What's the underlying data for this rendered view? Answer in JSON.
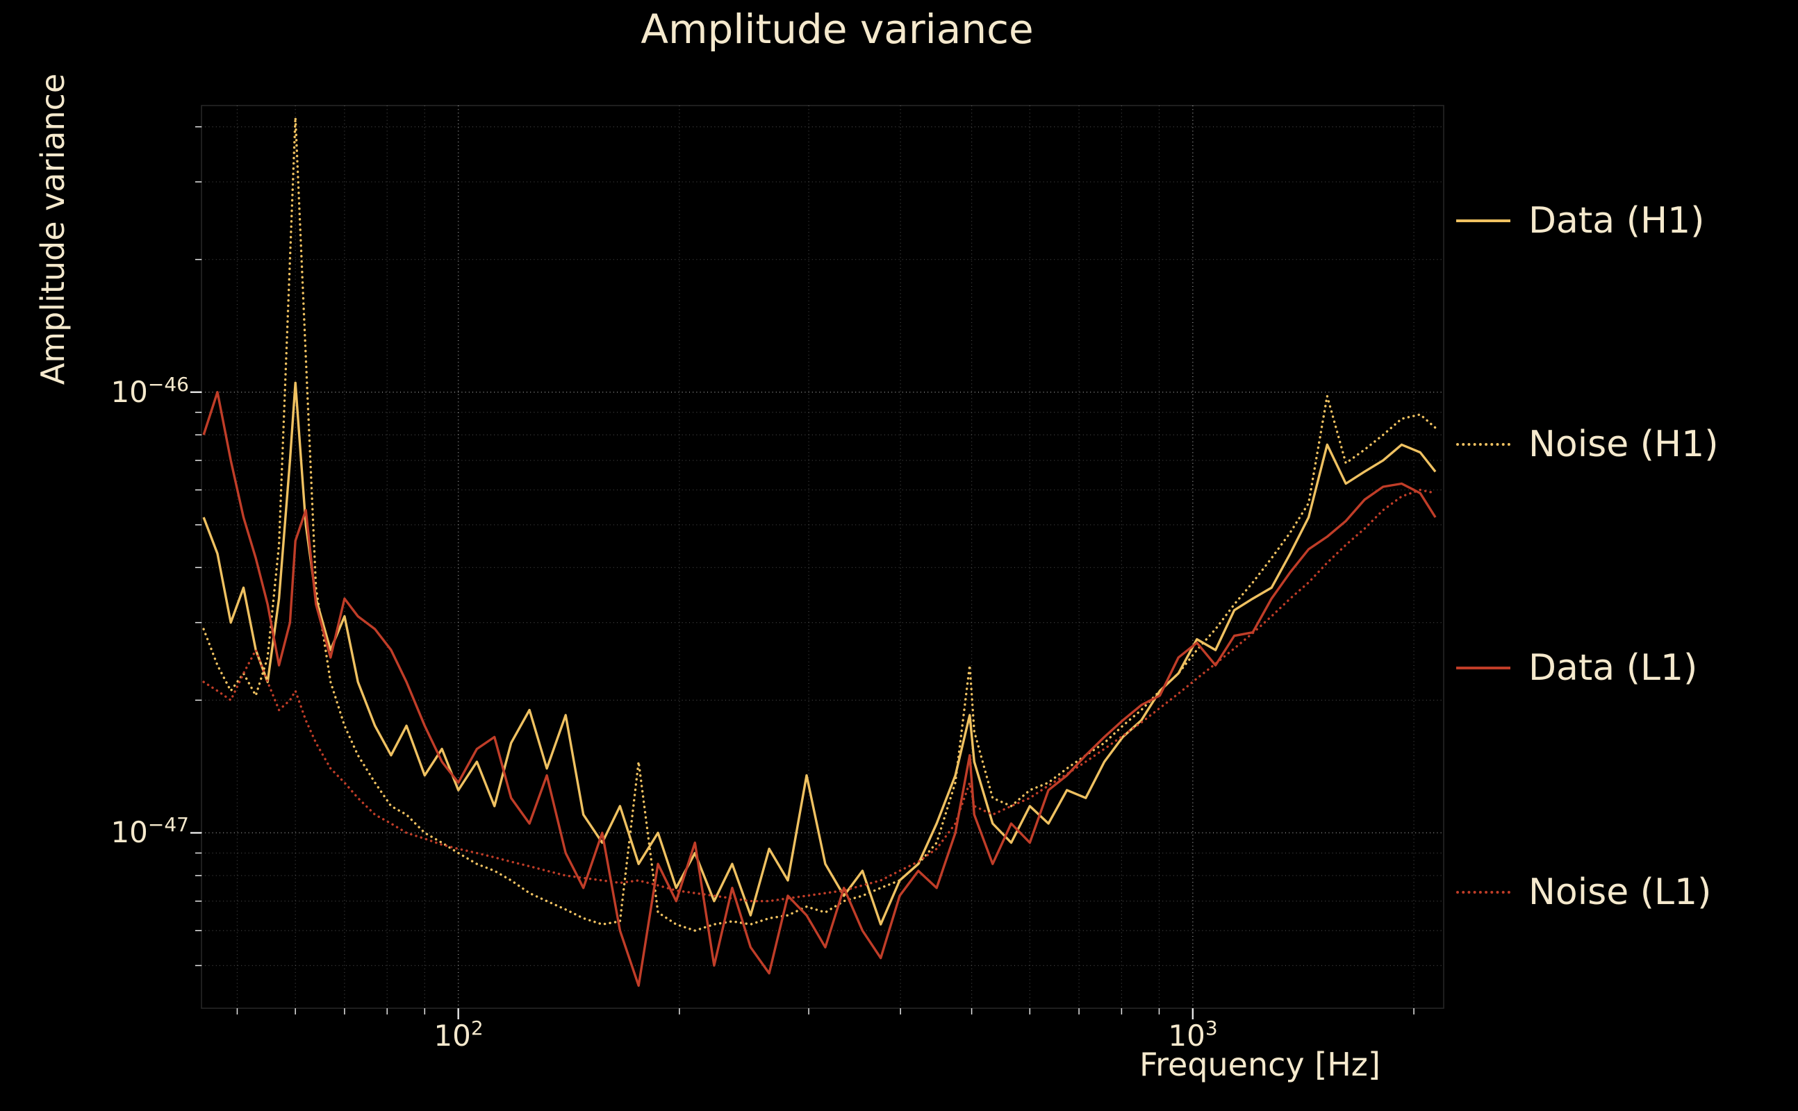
{
  "title": "Amplitude variance",
  "axes": {
    "x": {
      "label": "Frequency [Hz]",
      "scale": "log",
      "ticks": [
        {
          "base": "10",
          "exp": "2"
        },
        {
          "base": "10",
          "exp": "3"
        }
      ]
    },
    "y": {
      "label": "Amplitude variance",
      "scale": "log",
      "ticks": [
        {
          "base": "10",
          "exp": "−46"
        },
        {
          "base": "10",
          "exp": "−47"
        }
      ]
    }
  },
  "legend": {
    "position": "right-outside",
    "entries": [
      "Data (H1)",
      "Noise (H1)",
      "Data (L1)",
      "Noise (L1)"
    ]
  },
  "colors": {
    "background": "#000000",
    "text": "#f5e9cd",
    "h1_gold": "#efc161",
    "l1_red": "#c03d28",
    "grid": "#ffffff"
  },
  "chart_data": {
    "type": "line",
    "title": "Amplitude variance",
    "xlabel": "Frequency [Hz]",
    "ylabel": "Amplitude variance",
    "x_scale": "log",
    "y_scale": "log",
    "grid_on": true,
    "legend_position": "right-outside",
    "xlim": [
      44.7,
      2196
    ],
    "ylim": [
      4e-48,
      4.47e-46
    ],
    "y_value_unit": 1e-47,
    "x_hz": [
      45,
      47,
      49,
      51,
      53,
      55,
      57,
      59,
      60,
      62,
      64,
      67,
      70,
      73,
      77,
      81,
      85,
      90,
      95,
      100,
      106,
      112,
      118,
      125,
      132,
      140,
      148,
      157,
      166,
      176,
      187,
      198,
      210,
      223,
      236,
      250,
      265,
      281,
      298,
      316,
      335,
      355,
      376,
      399,
      423,
      448,
      475,
      497,
      504,
      534,
      566,
      600,
      636,
      674,
      715,
      758,
      803,
      851,
      902,
      956,
      1013,
      1074,
      1139,
      1207,
      1280,
      1357,
      1438,
      1524,
      1616,
      1713,
      1816,
      1925,
      2040,
      2140
    ],
    "series": [
      {
        "label": "Data (H1)",
        "color": "#efc161",
        "style": "solid",
        "values": [
          5.2,
          4.3,
          3.0,
          3.6,
          2.6,
          2.2,
          3.4,
          7.0,
          10.5,
          5.0,
          3.4,
          2.6,
          3.1,
          2.2,
          1.75,
          1.5,
          1.75,
          1.35,
          1.55,
          1.25,
          1.45,
          1.15,
          1.6,
          1.9,
          1.4,
          1.85,
          1.1,
          0.95,
          1.15,
          0.85,
          1.0,
          0.75,
          0.9,
          0.7,
          0.85,
          0.65,
          0.92,
          0.78,
          1.35,
          0.85,
          0.72,
          0.82,
          0.62,
          0.78,
          0.85,
          1.05,
          1.35,
          1.85,
          1.45,
          1.05,
          0.95,
          1.15,
          1.05,
          1.25,
          1.2,
          1.45,
          1.65,
          1.8,
          2.1,
          2.3,
          2.75,
          2.6,
          3.2,
          3.4,
          3.6,
          4.3,
          5.2,
          7.6,
          6.2,
          6.6,
          7.0,
          7.6,
          7.3,
          6.6
        ]
      },
      {
        "label": "Noise (H1)",
        "color": "#efc161",
        "style": "dotted",
        "values": [
          2.9,
          2.4,
          2.1,
          2.3,
          2.05,
          2.5,
          4.5,
          20,
          42,
          12,
          3.6,
          2.2,
          1.75,
          1.5,
          1.3,
          1.15,
          1.1,
          1.0,
          0.95,
          0.9,
          0.85,
          0.82,
          0.78,
          0.73,
          0.7,
          0.67,
          0.64,
          0.62,
          0.63,
          1.45,
          0.66,
          0.62,
          0.6,
          0.62,
          0.63,
          0.62,
          0.64,
          0.65,
          0.68,
          0.66,
          0.7,
          0.72,
          0.75,
          0.78,
          0.85,
          0.95,
          1.3,
          2.4,
          1.7,
          1.2,
          1.15,
          1.25,
          1.3,
          1.4,
          1.5,
          1.6,
          1.75,
          1.9,
          2.1,
          2.3,
          2.6,
          2.9,
          3.3,
          3.7,
          4.2,
          4.8,
          5.6,
          9.8,
          6.9,
          7.4,
          8.0,
          8.7,
          8.9,
          8.3
        ]
      },
      {
        "label": "Data (L1)",
        "color": "#c03d28",
        "style": "solid",
        "values": [
          8.0,
          10.0,
          7.0,
          5.2,
          4.2,
          3.3,
          2.4,
          3.0,
          4.6,
          5.4,
          3.3,
          2.5,
          3.4,
          3.1,
          2.9,
          2.6,
          2.2,
          1.75,
          1.45,
          1.3,
          1.55,
          1.65,
          1.2,
          1.05,
          1.35,
          0.9,
          0.75,
          1.0,
          0.6,
          0.45,
          0.85,
          0.7,
          0.95,
          0.5,
          0.75,
          0.55,
          0.48,
          0.72,
          0.65,
          0.55,
          0.75,
          0.6,
          0.52,
          0.72,
          0.82,
          0.75,
          1.0,
          1.5,
          1.1,
          0.85,
          1.05,
          0.95,
          1.25,
          1.35,
          1.5,
          1.65,
          1.8,
          1.95,
          2.05,
          2.5,
          2.7,
          2.4,
          2.8,
          2.85,
          3.4,
          3.9,
          4.4,
          4.7,
          5.1,
          5.7,
          6.1,
          6.2,
          5.9,
          5.2
        ]
      },
      {
        "label": "Noise (L1)",
        "color": "#c03d28",
        "style": "dotted",
        "values": [
          2.2,
          2.1,
          2.0,
          2.3,
          2.6,
          2.2,
          1.9,
          2.0,
          2.1,
          1.8,
          1.6,
          1.4,
          1.3,
          1.2,
          1.1,
          1.05,
          1.0,
          0.97,
          0.94,
          0.92,
          0.9,
          0.88,
          0.86,
          0.84,
          0.82,
          0.8,
          0.79,
          0.78,
          0.77,
          0.78,
          0.76,
          0.74,
          0.73,
          0.72,
          0.71,
          0.7,
          0.7,
          0.71,
          0.72,
          0.73,
          0.74,
          0.76,
          0.78,
          0.82,
          0.86,
          0.92,
          1.05,
          1.3,
          1.15,
          1.1,
          1.15,
          1.2,
          1.28,
          1.36,
          1.45,
          1.55,
          1.66,
          1.78,
          1.92,
          2.07,
          2.24,
          2.42,
          2.62,
          2.84,
          3.1,
          3.4,
          3.7,
          4.1,
          4.5,
          4.9,
          5.4,
          5.8,
          6.0,
          5.9
        ]
      }
    ],
    "grid": {
      "x_major": [
        100,
        1000
      ],
      "x_minor": [
        50,
        60,
        70,
        80,
        90,
        200,
        300,
        400,
        500,
        600,
        700,
        800,
        900,
        2000
      ],
      "y_major": [
        1e-47,
        1e-46
      ],
      "y_minor": [
        5e-48,
        6e-48,
        7e-48,
        8e-48,
        9e-48,
        2e-47,
        3e-47,
        4e-47,
        5e-47,
        6e-47,
        7e-47,
        8e-47,
        9e-47,
        2e-46,
        3e-46,
        4e-46
      ]
    }
  }
}
